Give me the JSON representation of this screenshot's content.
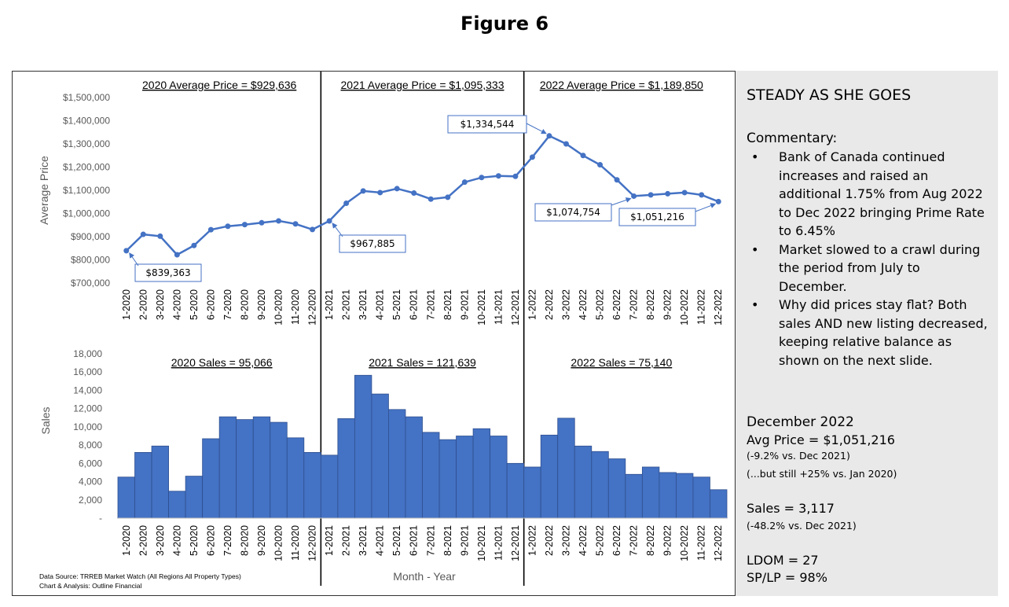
{
  "figure_title": "Figure 6",
  "chart_data": [
    {
      "type": "line",
      "x": [
        "1-2020",
        "2-2020",
        "3-2020",
        "4-2020",
        "5-2020",
        "6-2020",
        "7-2020",
        "8-2020",
        "9-2020",
        "10-2020",
        "11-2020",
        "12-2020",
        "1-2021",
        "2-2021",
        "3-2021",
        "4-2021",
        "5-2021",
        "6-2021",
        "7-2021",
        "8-2021",
        "9-2021",
        "10-2021",
        "11-2021",
        "12-2021",
        "1-2022",
        "2-2022",
        "3-2022",
        "4-2022",
        "5-2022",
        "6-2022",
        "7-2022",
        "8-2022",
        "9-2022",
        "10-2022",
        "11-2022",
        "12-2022"
      ],
      "values": [
        839363,
        910000,
        902000,
        822000,
        862000,
        930000,
        945000,
        952000,
        960000,
        968000,
        955000,
        931000,
        967885,
        1044000,
        1097000,
        1090000,
        1107000,
        1088000,
        1062000,
        1070000,
        1135000,
        1155000,
        1162000,
        1160000,
        1243000,
        1334544,
        1300000,
        1250000,
        1210000,
        1145000,
        1074754,
        1080000,
        1085000,
        1090000,
        1080000,
        1051216
      ],
      "ylabel": "Average Price",
      "ylim": [
        700000,
        1500000
      ],
      "y_ticks": [
        "$700,000",
        "$800,000",
        "$900,000",
        "$1,000,000",
        "$1,100,000",
        "$1,200,000",
        "$1,300,000",
        "$1,400,000",
        "$1,500,000"
      ],
      "period_labels": [
        "2020 Average Price = $929,636",
        "2021 Average Price = $1,095,333",
        "2022 Average Price = $1,189,850"
      ],
      "callouts": [
        {
          "text": "$839,363",
          "index": 0
        },
        {
          "text": "$967,885",
          "index": 12
        },
        {
          "text": "$1,334,544",
          "index": 25
        },
        {
          "text": "$1,074,754",
          "index": 30
        },
        {
          "text": "$1,051,216",
          "index": 35
        }
      ],
      "color": "#4472c4"
    },
    {
      "type": "bar",
      "x": [
        "1-2020",
        "2-2020",
        "3-2020",
        "4-2020",
        "5-2020",
        "6-2020",
        "7-2020",
        "8-2020",
        "9-2020",
        "10-2020",
        "11-2020",
        "12-2020",
        "1-2021",
        "2-2021",
        "3-2021",
        "4-2021",
        "5-2021",
        "6-2021",
        "7-2021",
        "8-2021",
        "9-2021",
        "10-2021",
        "11-2021",
        "12-2021",
        "1-2022",
        "2-2022",
        "3-2022",
        "4-2022",
        "5-2022",
        "6-2022",
        "7-2022",
        "8-2022",
        "9-2022",
        "10-2022",
        "11-2022",
        "12-2022"
      ],
      "values": [
        4500,
        7200,
        7900,
        2950,
        4600,
        8700,
        11100,
        10800,
        11100,
        10500,
        8800,
        7200,
        6900,
        10900,
        15650,
        13600,
        11900,
        11100,
        9400,
        8600,
        9000,
        9800,
        9000,
        6000,
        5600,
        9100,
        10950,
        7900,
        7300,
        6500,
        4800,
        5600,
        5000,
        4900,
        4500,
        3117
      ],
      "ylabel": "Sales",
      "xlabel": "Month - Year",
      "ylim": [
        0,
        18000
      ],
      "y_ticks": [
        "-",
        "2,000",
        "4,000",
        "6,000",
        "8,000",
        "10,000",
        "12,000",
        "14,000",
        "16,000",
        "18,000"
      ],
      "period_labels": [
        "2020 Sales = 95,066",
        "2021 Sales = 121,639",
        "2022 Sales = 75,140"
      ],
      "color": "#4472c4"
    }
  ],
  "source_lines": [
    "Data Source: TRREB Market Watch (All Regions All Property Types)",
    "Chart & Analysis: Outline Financial"
  ],
  "sidebar": {
    "title": "STEADY AS SHE GOES",
    "commentary_heading": "Commentary:",
    "bullets": [
      "Bank of Canada continued increases and raised an additional 1.75% from Aug 2022 to Dec 2022 bringing Prime Rate to 6.45%",
      "Market slowed to a crawl during the period from July to December.",
      "Why did prices stay flat? Both sales AND new listing decreased, keeping relative balance as shown on the next slide."
    ],
    "december_heading": "December 2022",
    "avg_price": "Avg Price = $1,051,216",
    "avg_note1": "(-9.2% vs. Dec 2021)",
    "avg_note2": "(...but still +25% vs. Jan 2020)",
    "sales": "Sales = 3,117",
    "sales_note": "(-48.2% vs. Dec 2021)",
    "ldom": "LDOM = 27",
    "splp": "SP/LP = 98%"
  }
}
